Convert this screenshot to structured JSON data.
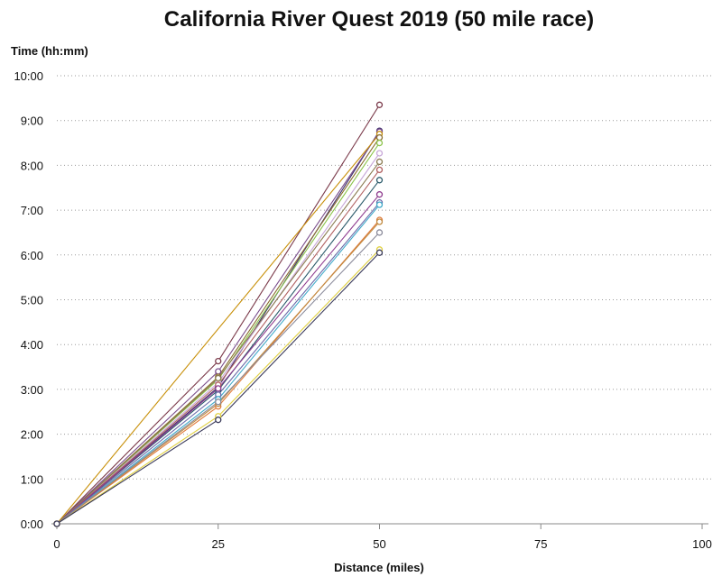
{
  "chart_data": {
    "type": "line",
    "title": "California River Quest 2019 (50 mile race)",
    "xlabel": "Distance (miles)",
    "ylabel": "Time (hh:mm)",
    "xlim": [
      0,
      100
    ],
    "ylim": [
      0,
      10
    ],
    "x_ticks": [
      0,
      25,
      50,
      75,
      100
    ],
    "x_tick_labels": [
      "0",
      "25",
      "50",
      "75",
      "100"
    ],
    "y_ticks": [
      0,
      1,
      2,
      3,
      4,
      5,
      6,
      7,
      8,
      9,
      10
    ],
    "y_tick_labels": [
      "0:00",
      "1:00",
      "2:00",
      "3:00",
      "4:00",
      "5:00",
      "6:00",
      "7:00",
      "8:00",
      "9:00",
      "10:00"
    ],
    "grid": "horizontal dotted",
    "legend": "none",
    "x": [
      0,
      25,
      50
    ],
    "series": [
      {
        "color": "#7b3a4a",
        "values": [
          0,
          3.63,
          9.35
        ]
      },
      {
        "color": "#3d2f6b",
        "values": [
          0,
          3.05,
          8.77
        ]
      },
      {
        "color": "#7a4d8c",
        "values": [
          0,
          3.4,
          8.75
        ]
      },
      {
        "color": "#c8900a",
        "values": [
          0,
          null,
          8.7
        ]
      },
      {
        "color": "#8a6e30",
        "values": [
          0,
          3.28,
          8.62
        ]
      },
      {
        "color": "#8bc34a",
        "values": [
          0,
          3.22,
          8.5
        ]
      },
      {
        "color": "#c8a8d8",
        "values": [
          0,
          3.15,
          8.27
        ]
      },
      {
        "color": "#8a7a50",
        "values": [
          0,
          3.25,
          8.08
        ]
      },
      {
        "color": "#b06060",
        "values": [
          0,
          3.1,
          7.9
        ]
      },
      {
        "color": "#2a5a6a",
        "values": [
          0,
          2.98,
          7.67
        ]
      },
      {
        "color": "#8e3a8e",
        "values": [
          0,
          3.02,
          7.35
        ]
      },
      {
        "color": "#6a6aa8",
        "values": [
          0,
          2.88,
          7.17
        ]
      },
      {
        "color": "#3fa9c9",
        "values": [
          0,
          2.78,
          7.12
        ]
      },
      {
        "color": "#e07a3a",
        "values": [
          0,
          2.62,
          6.78
        ]
      },
      {
        "color": "#c08a40",
        "values": [
          0,
          2.68,
          6.74
        ]
      },
      {
        "color": "#8a8a9a",
        "values": [
          0,
          2.72,
          6.5
        ]
      },
      {
        "color": "#e0d040",
        "values": [
          0,
          2.4,
          6.12
        ]
      },
      {
        "color": "#3a3a5a",
        "values": [
          0,
          2.32,
          6.05
        ]
      }
    ],
    "colors": {
      "axis": "#888888",
      "grid": "#9a9a9a",
      "text": "#111111"
    }
  }
}
